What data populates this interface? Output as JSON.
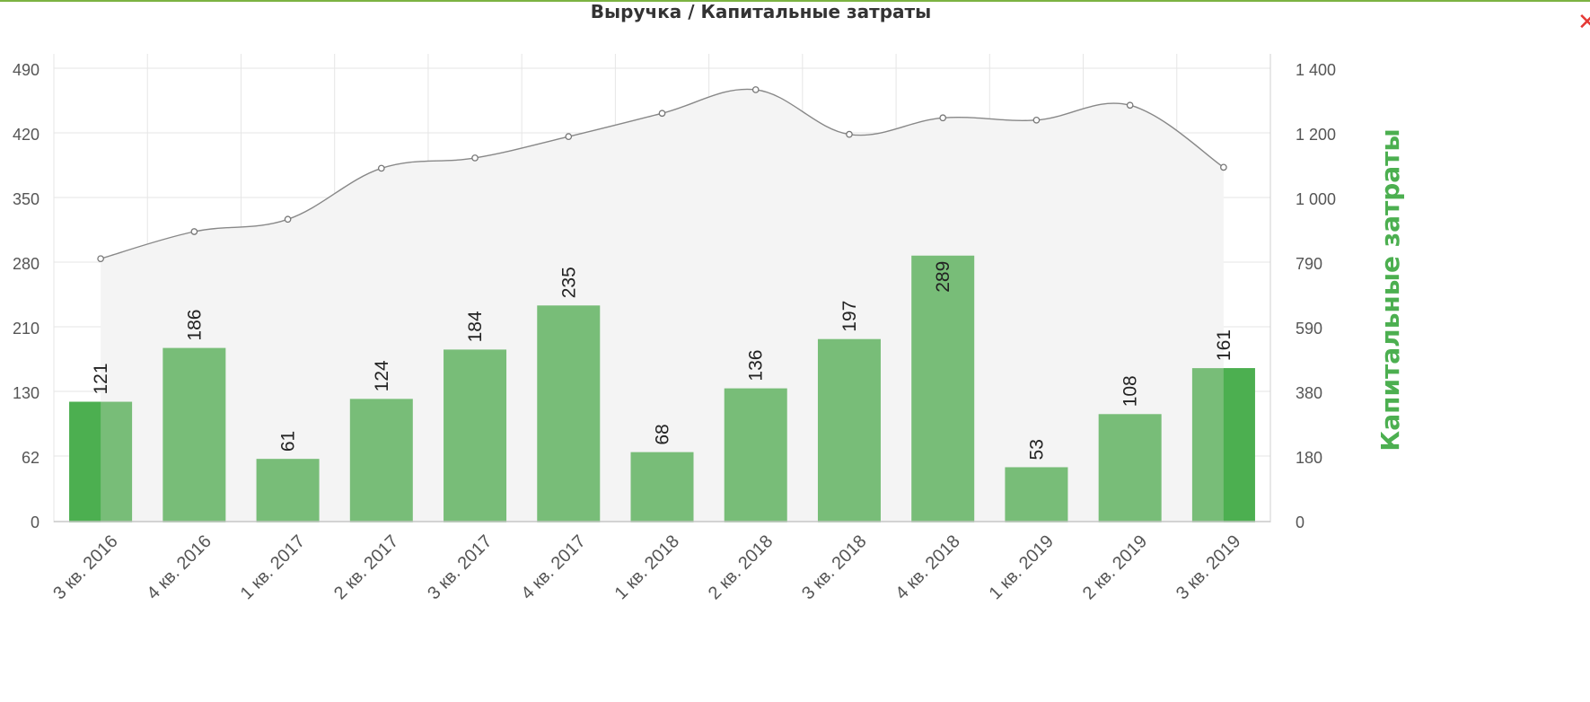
{
  "chart_data": {
    "type": "bar",
    "title": "Выручка / Капитальные затраты",
    "categories": [
      "3 кв. 2016",
      "4 кв. 2016",
      "1 кв. 2017",
      "2 кв. 2017",
      "3 кв. 2017",
      "4 кв. 2017",
      "1 кв. 2018",
      "2 кв. 2018",
      "3 кв. 2018",
      "4 кв. 2018",
      "1 кв. 2019",
      "2 кв. 2019",
      "3 кв. 2019"
    ],
    "series": [
      {
        "type": "bar",
        "axis": "left",
        "values": [
          121,
          186,
          61,
          124,
          184,
          235,
          68,
          136,
          197,
          289,
          53,
          108,
          161
        ],
        "color": "#78bd78",
        "highlight_color": "#4caf50"
      },
      {
        "type": "area-line",
        "axis": "right",
        "values": [
          807,
          895,
          935,
          1096,
          1128,
          1194,
          1266,
          1339,
          1201,
          1252,
          1245,
          1291,
          1099
        ],
        "line_color": "#888888",
        "fill_color": "#f4f4f4"
      }
    ],
    "y_left": {
      "ticks": [
        "0",
        "62",
        "130",
        "210",
        "280",
        "350",
        "420",
        "490"
      ],
      "range": [
        0,
        490
      ]
    },
    "y_right": {
      "title": "Капитальные затраты",
      "ticks": [
        "0",
        "180",
        "380",
        "590",
        "790",
        "1 000",
        "1 200",
        "1 400"
      ],
      "range": [
        0,
        1400
      ]
    },
    "grid": true,
    "legend": "none"
  },
  "ui": {
    "close_label": "✕"
  }
}
